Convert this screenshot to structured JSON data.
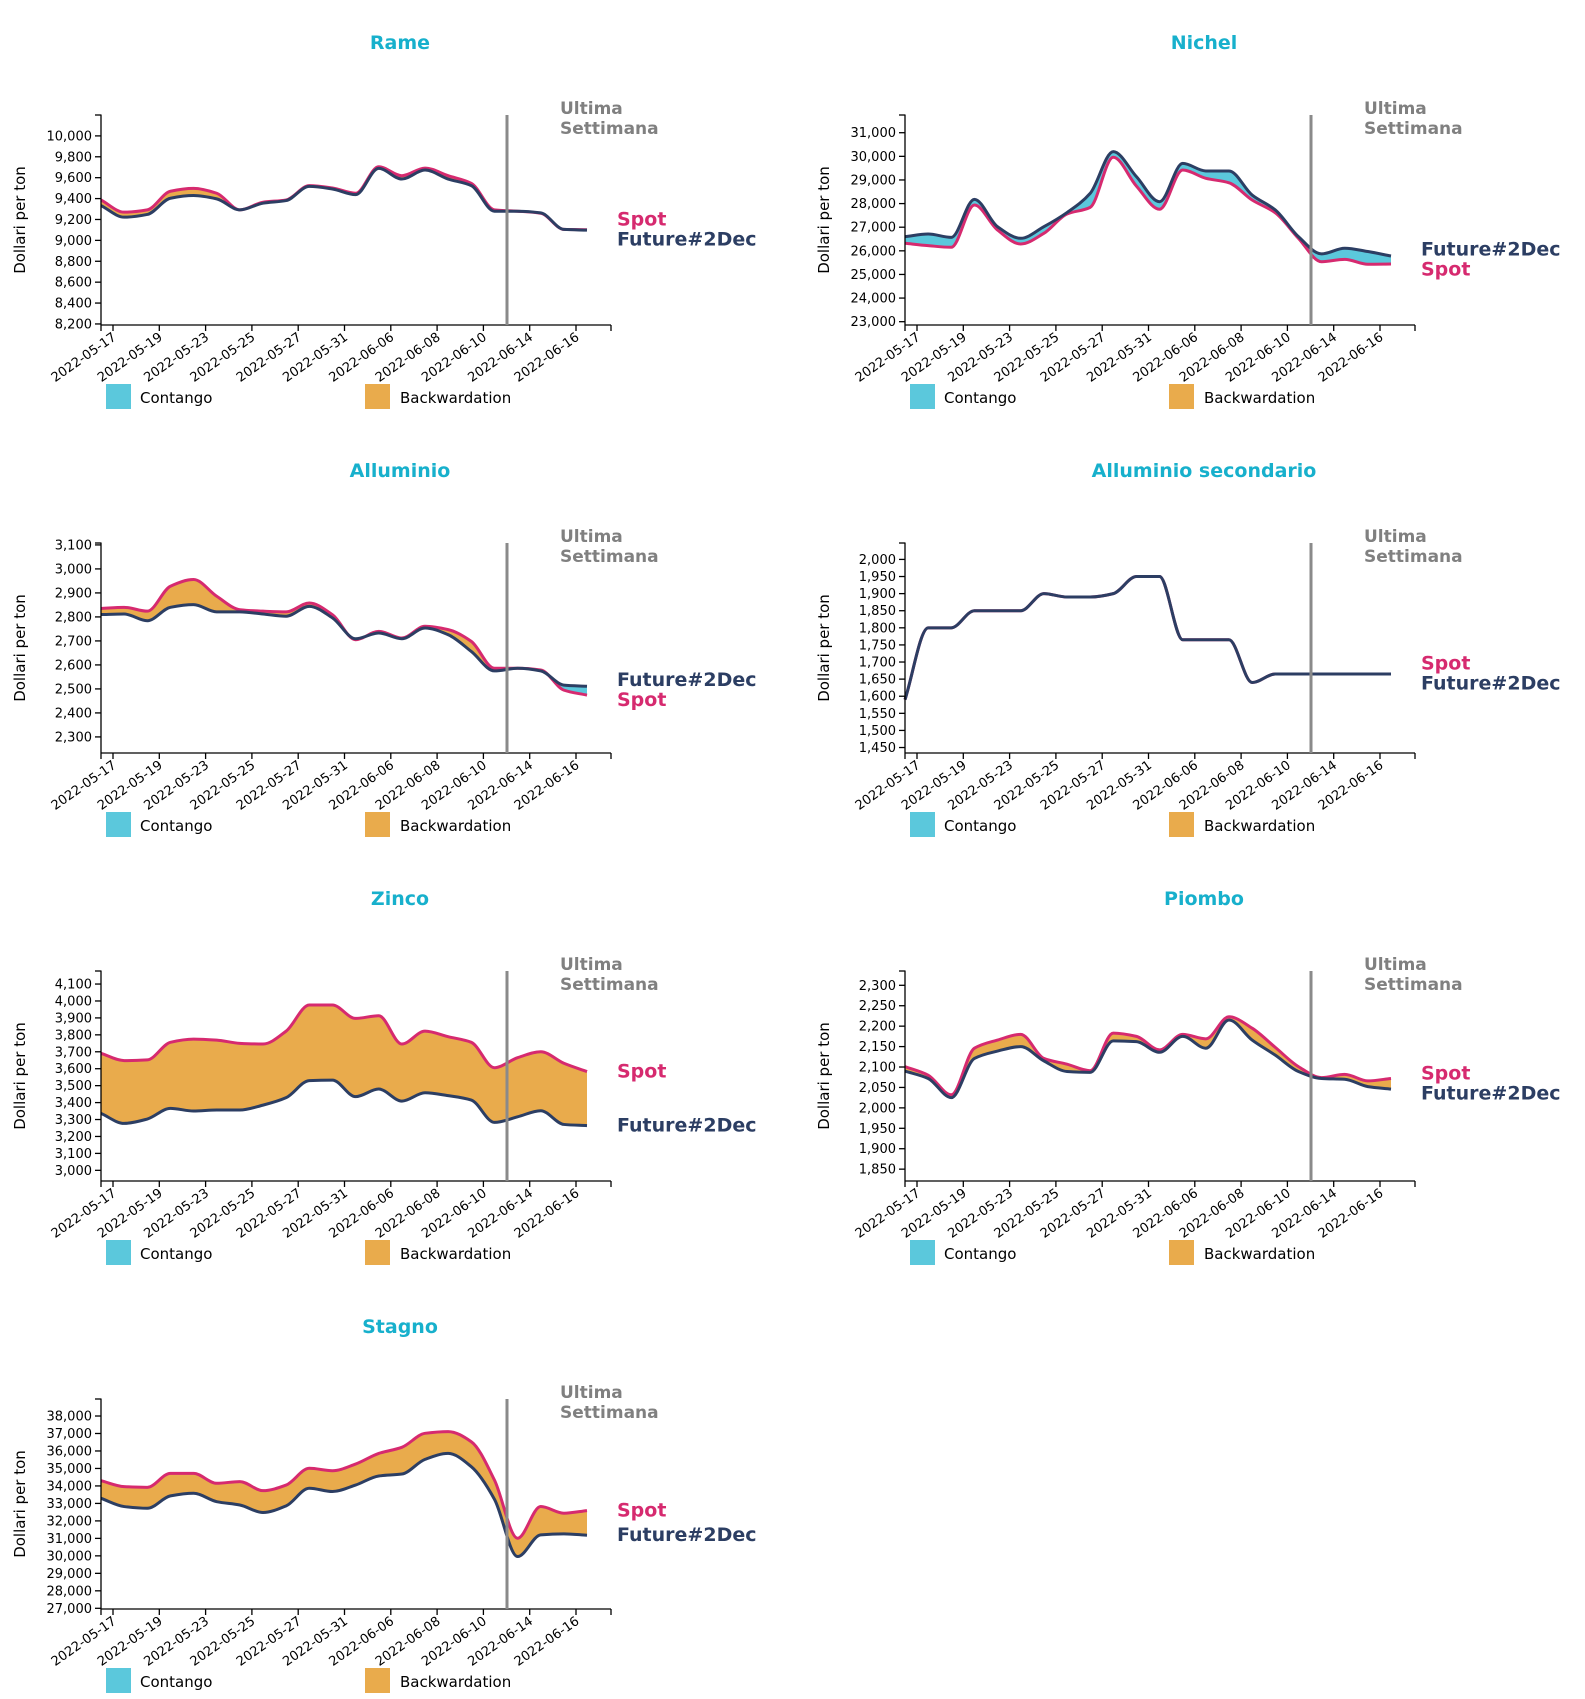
{
  "colors": {
    "title": "#17b0cc",
    "spot": "#d62a6f",
    "future": "#2c3e63",
    "contango": "#5bc8dc",
    "backwardation": "#e9ab4c",
    "week_line": "#8a8a8a",
    "week_label": "#808080"
  },
  "labels": {
    "ylabel": "Dollari per ton",
    "week_line_1": "Ultima",
    "week_line_2": "Settimana",
    "spot": "Spot",
    "future": "Future#2Dec",
    "legend_contango": "Contango",
    "legend_backwardation": "Backwardation"
  },
  "chart_data": [
    {
      "type": "area",
      "title": "Rame",
      "xlabel": "",
      "ylabel": "Dollari per ton",
      "ylim": [
        8190,
        10200
      ],
      "yticks": [
        8200,
        8400,
        8600,
        8800,
        9000,
        9200,
        9400,
        9600,
        9800,
        10000
      ],
      "xtick_labels": [
        "2022-05-17",
        "2022-05-19",
        "2022-05-23",
        "2022-05-25",
        "2022-05-27",
        "2022-05-31",
        "2022-06-06",
        "2022-06-08",
        "2022-06-10",
        "2022-06-14",
        "2022-06-16"
      ],
      "last_week_marker": "Ultima Settimana",
      "legend": [
        "Contango",
        "Backwardation"
      ],
      "series": [
        {
          "name": "Spot",
          "values": [
            9387,
            9270,
            9292,
            9470,
            9498,
            9451,
            9292,
            9365,
            9387,
            9524,
            9502,
            9451,
            9705,
            9619,
            9692,
            9619,
            9546,
            9292,
            9279,
            9260,
            9105,
            9102
          ]
        },
        {
          "name": "Future#2Dec",
          "values": [
            9333,
            9222,
            9248,
            9403,
            9429,
            9397,
            9292,
            9356,
            9381,
            9517,
            9492,
            9438,
            9689,
            9587,
            9673,
            9587,
            9524,
            9279,
            9279,
            9263,
            9105,
            9098
          ]
        }
      ]
    },
    {
      "type": "area",
      "title": "Nichel",
      "xlabel": "",
      "ylabel": "Dollari per ton",
      "ylim": [
        22860,
        31750
      ],
      "yticks": [
        23000,
        24000,
        25000,
        26000,
        27000,
        28000,
        29000,
        30000,
        31000
      ],
      "xtick_labels": [
        "2022-05-17",
        "2022-05-19",
        "2022-05-23",
        "2022-05-25",
        "2022-05-27",
        "2022-05-31",
        "2022-06-06",
        "2022-06-08",
        "2022-06-10",
        "2022-06-14",
        "2022-06-16"
      ],
      "last_week_marker": "Ultima Settimana",
      "legend": [
        "Contango",
        "Backwardation"
      ],
      "series": [
        {
          "name": "Spot",
          "values": [
            26320,
            26220,
            26150,
            27940,
            26880,
            26290,
            26740,
            27560,
            27840,
            29960,
            28740,
            27760,
            29420,
            29070,
            28880,
            28150,
            27610,
            26530,
            25540,
            25640,
            25430,
            25440
          ]
        },
        {
          "name": "Future#2Dec",
          "values": [
            26600,
            26710,
            26570,
            28180,
            27020,
            26530,
            27020,
            27620,
            28430,
            30200,
            29140,
            28080,
            29700,
            29380,
            29380,
            28360,
            27730,
            26600,
            25870,
            26110,
            25970,
            25780
          ]
        }
      ]
    },
    {
      "type": "area",
      "title": "Alluminio",
      "xlabel": "",
      "ylabel": "Dollari per ton",
      "ylim": [
        2233,
        3108
      ],
      "yticks": [
        2300,
        2400,
        2500,
        2600,
        2700,
        2800,
        2900,
        3000,
        3100
      ],
      "xtick_labels": [
        "2022-05-17",
        "2022-05-19",
        "2022-05-23",
        "2022-05-25",
        "2022-05-27",
        "2022-05-31",
        "2022-06-06",
        "2022-06-08",
        "2022-06-10",
        "2022-06-14",
        "2022-06-16"
      ],
      "last_week_marker": "Ultima Settimana",
      "legend": [
        "Contango",
        "Backwardation"
      ],
      "series": [
        {
          "name": "Spot",
          "values": [
            2835,
            2840,
            2824,
            2928,
            2956,
            2886,
            2830,
            2824,
            2821,
            2858,
            2809,
            2705,
            2740,
            2712,
            2761,
            2747,
            2698,
            2586,
            2586,
            2579,
            2495,
            2474
          ]
        },
        {
          "name": "Future#2Dec",
          "values": [
            2810,
            2812,
            2784,
            2840,
            2851,
            2821,
            2821,
            2812,
            2803,
            2844,
            2796,
            2709,
            2733,
            2709,
            2754,
            2726,
            2656,
            2575,
            2586,
            2575,
            2516,
            2511
          ]
        }
      ]
    },
    {
      "type": "area",
      "title": "Alluminio secondario",
      "xlabel": "",
      "ylabel": "Dollari per ton",
      "ylim": [
        1434,
        2048
      ],
      "yticks": [
        1450,
        1500,
        1550,
        1600,
        1650,
        1700,
        1750,
        1800,
        1850,
        1900,
        1950,
        2000
      ],
      "xtick_labels": [
        "2022-05-17",
        "2022-05-19",
        "2022-05-23",
        "2022-05-25",
        "2022-05-27",
        "2022-05-31",
        "2022-06-06",
        "2022-06-08",
        "2022-06-10",
        "2022-06-14",
        "2022-06-16"
      ],
      "last_week_marker": "Ultima Settimana",
      "legend": [
        "Contango",
        "Backwardation"
      ],
      "series": [
        {
          "name": "Spot",
          "values": [
            1590,
            1800,
            1800,
            1850,
            1850,
            1850,
            1900,
            1890,
            1890,
            1900,
            1950,
            1950,
            1765,
            1765,
            1765,
            1640,
            1665,
            1665,
            1665,
            1665,
            1665,
            1665
          ]
        },
        {
          "name": "Future#2Dec",
          "values": [
            1590,
            1800,
            1800,
            1850,
            1850,
            1850,
            1900,
            1890,
            1890,
            1900,
            1950,
            1950,
            1765,
            1765,
            1765,
            1640,
            1665,
            1665,
            1665,
            1665,
            1665,
            1665
          ]
        }
      ]
    },
    {
      "type": "area",
      "title": "Zinco",
      "xlabel": "",
      "ylabel": "Dollari per ton",
      "ylim": [
        2937,
        4177
      ],
      "yticks": [
        3000,
        3100,
        3200,
        3300,
        3400,
        3500,
        3600,
        3700,
        3800,
        3900,
        4000,
        4100
      ],
      "xtick_labels": [
        "2022-05-17",
        "2022-05-19",
        "2022-05-23",
        "2022-05-25",
        "2022-05-27",
        "2022-05-31",
        "2022-06-06",
        "2022-06-08",
        "2022-06-10",
        "2022-06-14",
        "2022-06-16"
      ],
      "last_week_marker": "Ultima Settimana",
      "legend": [
        "Contango",
        "Backwardation"
      ],
      "series": [
        {
          "name": "Spot",
          "values": [
            3691,
            3648,
            3652,
            3756,
            3775,
            3769,
            3750,
            3746,
            3822,
            3976,
            3976,
            3897,
            3913,
            3746,
            3822,
            3789,
            3756,
            3606,
            3665,
            3700,
            3632,
            3583
          ]
        },
        {
          "name": "Future#2Dec",
          "values": [
            3336,
            3277,
            3303,
            3366,
            3350,
            3356,
            3356,
            3385,
            3429,
            3530,
            3533,
            3435,
            3480,
            3409,
            3458,
            3441,
            3415,
            3283,
            3316,
            3352,
            3271,
            3264
          ]
        }
      ]
    },
    {
      "type": "area",
      "title": "Piombo",
      "xlabel": "",
      "ylabel": "Dollari per ton",
      "ylim": [
        1821,
        2335
      ],
      "yticks": [
        1850,
        1900,
        1950,
        2000,
        2050,
        2100,
        2150,
        2200,
        2250,
        2300
      ],
      "xtick_labels": [
        "2022-05-17",
        "2022-05-19",
        "2022-05-23",
        "2022-05-25",
        "2022-05-27",
        "2022-05-31",
        "2022-06-06",
        "2022-06-08",
        "2022-06-10",
        "2022-06-14",
        "2022-06-16"
      ],
      "last_week_marker": "Ultima Settimana",
      "legend": [
        "Contango",
        "Backwardation"
      ],
      "series": [
        {
          "name": "Spot",
          "values": [
            2101,
            2080,
            2032,
            2146,
            2166,
            2180,
            2121,
            2107,
            2091,
            2183,
            2175,
            2142,
            2180,
            2169,
            2223,
            2195,
            2148,
            2101,
            2074,
            2082,
            2066,
            2072
          ]
        },
        {
          "name": "Future#2Dec",
          "values": [
            2090,
            2072,
            2025,
            2121,
            2139,
            2150,
            2115,
            2089,
            2087,
            2164,
            2162,
            2136,
            2175,
            2146,
            2215,
            2166,
            2129,
            2089,
            2072,
            2070,
            2052,
            2046
          ]
        }
      ]
    },
    {
      "type": "area",
      "title": "Stagno",
      "xlabel": "",
      "ylabel": "Dollari per ton",
      "ylim": [
        26960,
        38973
      ],
      "yticks": [
        27000,
        28000,
        29000,
        30000,
        31000,
        32000,
        33000,
        34000,
        35000,
        36000,
        37000,
        38000
      ],
      "xtick_labels": [
        "2022-05-17",
        "2022-05-19",
        "2022-05-23",
        "2022-05-25",
        "2022-05-27",
        "2022-05-31",
        "2022-06-06",
        "2022-06-08",
        "2022-06-10",
        "2022-06-14",
        "2022-06-16"
      ],
      "last_week_marker": "Ultima Settimana",
      "legend": [
        "Contango",
        "Backwardation"
      ],
      "series": [
        {
          "name": "Spot",
          "values": [
            34300,
            33960,
            33920,
            34720,
            34720,
            34150,
            34250,
            33730,
            34050,
            35010,
            34870,
            35250,
            35860,
            36210,
            37010,
            37110,
            36530,
            34340,
            31010,
            32820,
            32440,
            32590
          ]
        },
        {
          "name": "Future#2Dec",
          "values": [
            33290,
            32820,
            32720,
            33430,
            33580,
            33100,
            32910,
            32480,
            32860,
            33870,
            33680,
            34050,
            34570,
            34680,
            35520,
            35860,
            35100,
            33240,
            29960,
            31200,
            31260,
            31180
          ]
        }
      ]
    }
  ]
}
